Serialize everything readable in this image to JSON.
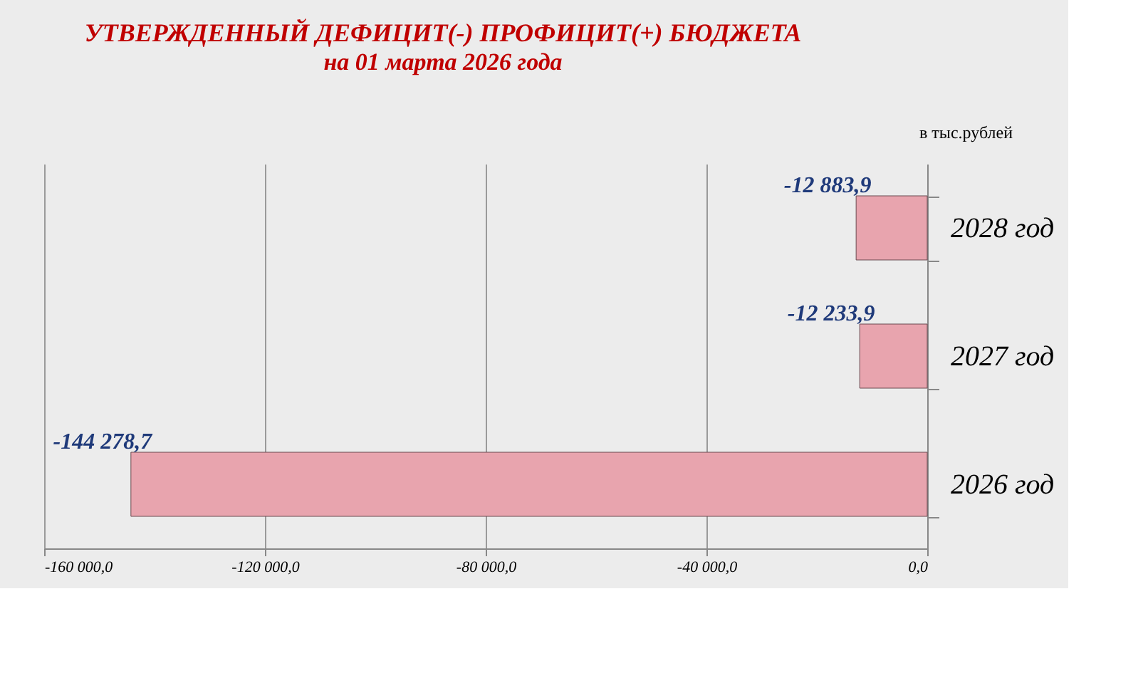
{
  "chart_data": {
    "type": "bar",
    "orientation": "horizontal",
    "title": "УТВЕРЖДЕННЫЙ  ДЕФИЦИТ(-)  ПРОФИЦИТ(+)   БЮДЖЕТА",
    "subtitle": "на 01 марта 2026 года",
    "annotations": [
      "в тыс.рублей"
    ],
    "categories": [
      "2028 год",
      "2027 год",
      "2026 год"
    ],
    "values": [
      -12883.9,
      -12233.9,
      -144278.7
    ],
    "value_labels": [
      "-12 883,9",
      "-12 233,9",
      "-144 278,7"
    ],
    "color": "#e8a4ae",
    "xlim": [
      -160000,
      0
    ],
    "xticks": [
      {
        "value": -160000,
        "label": "-160 000,0"
      },
      {
        "value": -120000,
        "label": "-120 000,0"
      },
      {
        "value": -80000,
        "label": "-80 000,0"
      },
      {
        "value": -40000,
        "label": "-40 000,0"
      },
      {
        "value": 0,
        "label": "0,0"
      }
    ],
    "grid": "x"
  }
}
